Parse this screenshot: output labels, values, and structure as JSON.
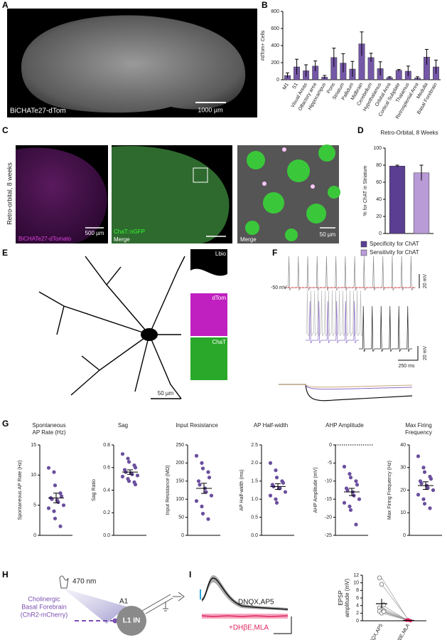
{
  "panel_letters": [
    "A",
    "B",
    "C",
    "D",
    "E",
    "F",
    "G",
    "H",
    "I"
  ],
  "figure_a": {
    "label": "BiCHATe27-dTom",
    "scale": "1000 µm"
  },
  "figure_c": {
    "side_label": "Retro-orbital, 8 weeks",
    "red_label": "BiCHATe27-dTomato",
    "scale_1": "500 µm",
    "green_label": "ChaT::nGFP",
    "merge_1": "Merge",
    "merge_2": "Merge",
    "scale_2": "50 µm"
  },
  "figure_e": {
    "insets": [
      "Lbio",
      "dTom",
      "ChaT"
    ],
    "scale": "50 µm"
  },
  "figure_f": {
    "rest": "-50 mV",
    "scale_top": "20 mV",
    "scale_v": "20 mV",
    "scale_t": "250 ms"
  },
  "figure_h": {
    "light": "470 nm",
    "source": [
      "Cholinergic",
      "Basal Forebrain",
      "(ChR2-mCherry)"
    ],
    "area": "A1",
    "cell": "L1 IN"
  },
  "figure_i": {
    "trace_1": "DNQX,AP5",
    "trace_2": "+DHβE,MLA"
  },
  "chart_data": [
    {
      "type": "bar",
      "ylabel": "#dTom+ Cells",
      "categories": [
        "M1",
        "S1",
        "Visual Areas",
        "Olfactory area",
        "Hippocampus",
        "Pons",
        "Striatum",
        "Pallidum",
        "Midbrain",
        "Cerebellum",
        "Hypothalamus",
        "Orbital Area",
        "Cortical Subplate",
        "Thalamus",
        "Retrosplenial Area",
        "Medulla",
        "Basal Forebrain"
      ],
      "values": [
        50,
        150,
        105,
        160,
        30,
        260,
        195,
        125,
        420,
        260,
        130,
        25,
        110,
        100,
        20,
        265,
        150
      ],
      "errors": [
        30,
        90,
        70,
        60,
        20,
        110,
        110,
        90,
        140,
        50,
        80,
        10,
        10,
        60,
        15,
        90,
        80
      ],
      "color": "#7557a8",
      "ylim": [
        0,
        800
      ],
      "yticks": [
        0,
        200,
        400,
        600,
        800
      ]
    },
    {
      "type": "bar",
      "title": "Retro-Orbital, 8 Weeks",
      "ylabel": "% for ChAT in Striatum",
      "categories": [
        "Specificity for ChAT",
        "Sensitivity for ChAT"
      ],
      "values": [
        79,
        71
      ],
      "errors": [
        1,
        9
      ],
      "colors": [
        "#5b3e91",
        "#b99bd8"
      ],
      "ylim": [
        0,
        100
      ],
      "yticks": [
        0,
        20,
        40,
        60,
        80,
        100
      ],
      "legend": "bottom"
    },
    {
      "type": "strip",
      "title": [
        "Spontaneous",
        "AP Rate (Hz)"
      ],
      "ylabel": "Spontaneous AP Rate (Hz)",
      "values": [
        11.2,
        10.5,
        8.3,
        7,
        6.5,
        6.2,
        6,
        5.8,
        5.5,
        5,
        4.5,
        4,
        2.8,
        1.5
      ],
      "mean": 6.2,
      "sem": 0.8,
      "color": "#6b4f9e",
      "ylim": [
        0,
        15
      ],
      "yticks": [
        0,
        5,
        10,
        15
      ]
    },
    {
      "type": "strip",
      "title": [
        "Sag"
      ],
      "ylabel": "Sag Ratio",
      "values": [
        0.72,
        0.68,
        0.65,
        0.62,
        0.6,
        0.58,
        0.56,
        0.55,
        0.54,
        0.53,
        0.52,
        0.5,
        0.48,
        0.47,
        0.45
      ],
      "mean": 0.56,
      "sem": 0.02,
      "color": "#6b4f9e",
      "ylim": [
        0,
        0.8
      ],
      "yticks": [
        {
          "value": 0,
          "label": "0.0"
        },
        0.2,
        0.4,
        0.6,
        0.8
      ]
    },
    {
      "type": "strip",
      "title": [
        "Input Resistance"
      ],
      "ylabel": "Input Resistance (MΩ)",
      "values": [
        220,
        200,
        185,
        175,
        160,
        150,
        140,
        130,
        120,
        110,
        95,
        80,
        60,
        45
      ],
      "mean": 130,
      "sem": 14,
      "color": "#6b4f9e",
      "ylim": [
        0,
        250
      ],
      "yticks": [
        0,
        50,
        100,
        150,
        200,
        250
      ]
    },
    {
      "type": "strip",
      "title": [
        "AP Half-width"
      ],
      "ylabel": "AP Half-width (ms)",
      "values": [
        2.0,
        1.8,
        1.6,
        1.5,
        1.45,
        1.4,
        1.35,
        1.3,
        1.3,
        1.2,
        1.1,
        1.0,
        0.9
      ],
      "mean": 1.35,
      "sem": 0.08,
      "color": "#6b4f9e",
      "ylim": [
        0,
        2.5
      ],
      "yticks": [
        {
          "value": 0,
          "label": "0.0"
        },
        0.5,
        {
          "value": 1,
          "label": "1.0"
        },
        1.5,
        {
          "value": 2,
          "label": "2.0"
        },
        2.5
      ]
    },
    {
      "type": "strip",
      "title": [
        "AHP Amplitude"
      ],
      "ylabel": "AHP Amplitude (mV)",
      "values": [
        -6,
        -8,
        -9,
        -10,
        -11,
        -12,
        -12.5,
        -13,
        -14,
        -15,
        -16,
        -17,
        -18,
        -22
      ],
      "mean": -13,
      "sem": 1,
      "color": "#6b4f9e",
      "ylim": [
        -25,
        0
      ],
      "yticks": [
        0,
        -5,
        -10,
        -15,
        -20,
        -25
      ],
      "reference_line": 0
    },
    {
      "type": "strip",
      "title": [
        "Max Firing",
        "Frequency"
      ],
      "ylabel": "Max Firing Frequency (Hz)",
      "values": [
        35,
        30,
        28,
        26,
        25,
        24,
        23,
        22,
        21,
        20,
        18,
        16,
        14,
        12
      ],
      "mean": 22,
      "sem": 1.7,
      "color": "#6b4f9e",
      "ylim": [
        0,
        40
      ],
      "yticks": [
        0,
        10,
        20,
        30,
        40
      ]
    },
    {
      "type": "paired",
      "ylabel": [
        "EPSP",
        "amplitude (mV)"
      ],
      "categories": [
        "DNQX,AP5",
        "DNQX,AP5, DHβE,MLA"
      ],
      "before": [
        11.3,
        9.6,
        4.2,
        3.4,
        3,
        2.7,
        2.5,
        2,
        2.4
      ],
      "after": [
        0.1,
        0.3,
        0,
        0.2,
        0.1,
        0,
        0.2,
        0.1,
        0
      ],
      "means": [
        4.5,
        0.1
      ],
      "sems": [
        1.3,
        0.1
      ],
      "colors": [
        "#888888",
        "#e0245e"
      ],
      "ylim": [
        0,
        12
      ],
      "yticks": [
        0,
        2,
        4,
        6,
        8,
        10,
        12
      ]
    }
  ]
}
